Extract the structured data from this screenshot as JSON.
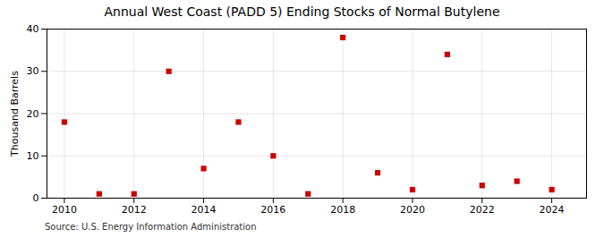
{
  "chart_data": {
    "type": "scatter",
    "title": "Annual West Coast (PADD 5) Ending Stocks of Normal Butylene",
    "ylabel": "Thousand Barrels",
    "annotation": "Source: U.S. Energy Information Administration",
    "x": [
      2010,
      2011,
      2012,
      2013,
      2014,
      2015,
      2016,
      2017,
      2018,
      2019,
      2020,
      2021,
      2022,
      2023,
      2024
    ],
    "values": [
      18,
      1,
      1,
      30,
      7,
      18,
      10,
      1,
      38,
      6,
      2,
      34,
      3,
      4,
      2
    ],
    "xlim": [
      2009.5,
      2025.0
    ],
    "xticks": [
      2010,
      2012,
      2014,
      2016,
      2018,
      2020,
      2022,
      2024
    ],
    "ylim": [
      0,
      40
    ],
    "yticks": [
      0,
      10,
      20,
      30,
      40
    ],
    "color": "#cc0000",
    "marker": "square",
    "grid": true
  }
}
